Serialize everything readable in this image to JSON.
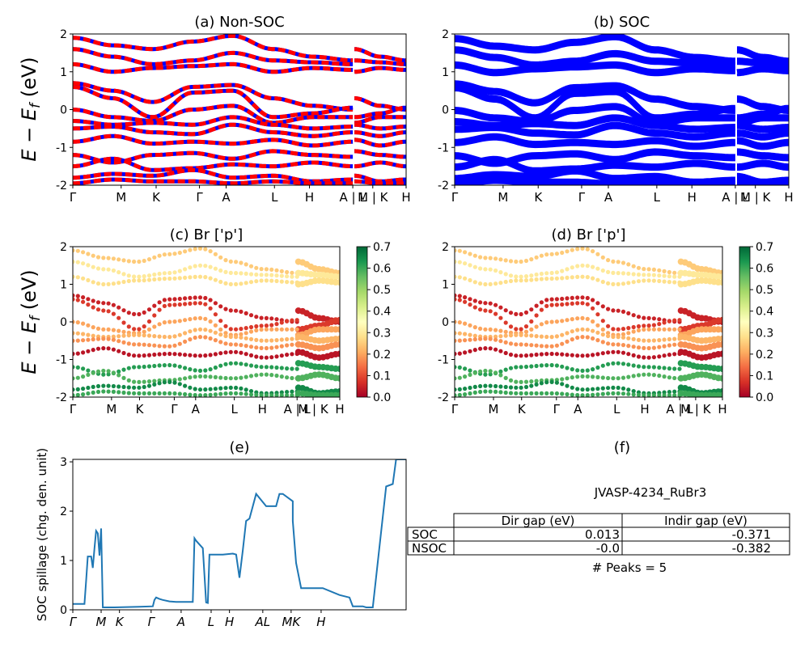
{
  "figure": {
    "row_ylabel": "E − E",
    "row_ylabel_sub": "f",
    "row_ylabel_unit": " (eV)"
  },
  "chart_data": [
    {
      "id": "a",
      "type": "line",
      "title": "(a) Non-SOC",
      "ylim": [
        -2,
        2
      ],
      "yticks": [
        "-2",
        "-1",
        "0",
        "1",
        "2"
      ],
      "kpath_labels": [
        "Γ",
        "M",
        "K",
        "Γ",
        "A",
        "L",
        "H",
        "A | L",
        "M | K",
        "H"
      ],
      "colors": [
        "#ff0000",
        "#0000ff"
      ],
      "segments": [
        {
          "x": [
            0.0,
            0.84
          ]
        },
        {
          "x": [
            0.845,
            1.0
          ]
        }
      ],
      "series": [
        {
          "values": [
            1.9,
            1.7,
            1.6,
            1.8,
            1.95,
            1.6,
            1.4,
            1.3
          ]
        },
        {
          "values": [
            1.6,
            1.4,
            1.2,
            1.3,
            1.5,
            1.3,
            1.25,
            1.2
          ]
        },
        {
          "values": [
            1.2,
            1.0,
            1.1,
            1.15,
            1.2,
            1.0,
            1.1,
            1.05
          ]
        },
        {
          "values": [
            0.7,
            0.5,
            0.2,
            0.6,
            0.65,
            0.3,
            0.1,
            0.0
          ]
        },
        {
          "values": [
            0.6,
            0.3,
            -0.2,
            0.45,
            0.5,
            -0.2,
            -0.1,
            0.05
          ]
        },
        {
          "values": [
            0.0,
            -0.2,
            -0.3,
            0.0,
            0.1,
            -0.35,
            -0.2,
            -0.2
          ]
        },
        {
          "values": [
            -0.3,
            -0.4,
            -0.35,
            -0.4,
            -0.2,
            -0.4,
            -0.5,
            -0.45
          ]
        },
        {
          "values": [
            -0.5,
            -0.45,
            -0.6,
            -0.65,
            -0.4,
            -0.6,
            -0.7,
            -0.6
          ]
        },
        {
          "values": [
            -0.85,
            -0.7,
            -0.9,
            -0.85,
            -0.9,
            -0.8,
            -0.95,
            -0.85
          ]
        },
        {
          "values": [
            -1.2,
            -1.4,
            -1.2,
            -1.15,
            -1.3,
            -1.1,
            -1.2,
            -1.25
          ]
        },
        {
          "values": [
            -1.5,
            -1.3,
            -1.6,
            -1.55,
            -1.45,
            -1.5,
            -1.4,
            -1.5
          ]
        },
        {
          "values": [
            -1.8,
            -1.7,
            -1.75,
            -1.6,
            -1.8,
            -1.75,
            -1.9,
            -1.85
          ]
        },
        {
          "values": [
            -1.95,
            -1.85,
            -1.9,
            -1.9,
            -1.95,
            -1.9,
            -1.95,
            -1.95
          ]
        }
      ]
    },
    {
      "id": "b",
      "type": "line",
      "title": "(b) SOC",
      "ylim": [
        -2,
        2
      ],
      "yticks": [
        "-2",
        "-1",
        "0",
        "1",
        "2"
      ],
      "kpath_labels": [
        "Γ",
        "M",
        "K",
        "Γ",
        "A",
        "L",
        "H",
        "A | L",
        "M | K",
        "H"
      ],
      "colors": [
        "#0000ff"
      ],
      "segments": [
        {
          "x": [
            0.0,
            0.84
          ]
        },
        {
          "x": [
            0.845,
            1.0
          ]
        }
      ],
      "series": [
        {
          "values": [
            1.9,
            1.7,
            1.6,
            1.8,
            1.95,
            1.6,
            1.4,
            1.3
          ]
        },
        {
          "values": [
            1.6,
            1.4,
            1.2,
            1.3,
            1.5,
            1.3,
            1.25,
            1.2
          ]
        },
        {
          "values": [
            1.2,
            1.0,
            1.1,
            1.15,
            1.2,
            1.0,
            1.1,
            1.05
          ]
        },
        {
          "values": [
            0.7,
            0.5,
            0.2,
            0.6,
            0.65,
            0.3,
            0.1,
            0.0
          ]
        },
        {
          "values": [
            0.6,
            0.3,
            -0.2,
            0.45,
            0.5,
            -0.2,
            -0.1,
            0.05
          ]
        },
        {
          "values": [
            0.0,
            -0.2,
            -0.3,
            0.0,
            0.1,
            -0.35,
            -0.2,
            -0.2
          ]
        },
        {
          "values": [
            -0.3,
            -0.4,
            -0.35,
            -0.4,
            -0.2,
            -0.4,
            -0.5,
            -0.45
          ]
        },
        {
          "values": [
            -0.5,
            -0.45,
            -0.6,
            -0.65,
            -0.4,
            -0.6,
            -0.7,
            -0.6
          ]
        },
        {
          "values": [
            -0.85,
            -0.7,
            -0.9,
            -0.85,
            -0.9,
            -0.8,
            -0.95,
            -0.85
          ]
        },
        {
          "values": [
            -1.2,
            -1.4,
            -1.2,
            -1.15,
            -1.3,
            -1.1,
            -1.2,
            -1.25
          ]
        },
        {
          "values": [
            -1.5,
            -1.3,
            -1.6,
            -1.55,
            -1.45,
            -1.5,
            -1.4,
            -1.5
          ]
        },
        {
          "values": [
            -1.8,
            -1.7,
            -1.75,
            -1.6,
            -1.8,
            -1.75,
            -1.9,
            -1.85
          ]
        },
        {
          "values": [
            -1.95,
            -1.85,
            -1.9,
            -1.9,
            -1.95,
            -1.9,
            -1.95,
            -1.95
          ]
        }
      ]
    },
    {
      "id": "c",
      "type": "scatter",
      "title": "(c)  Br ['p']",
      "ylim": [
        -2,
        2
      ],
      "yticks": [
        "-2",
        "-1",
        "0",
        "1",
        "2"
      ],
      "kpath_labels": [
        "Γ",
        "M",
        "K",
        "Γ",
        "A",
        "L",
        "H",
        "A | L",
        "M | K",
        "H"
      ],
      "colorbar": {
        "min": 0.0,
        "max": 0.7,
        "ticks": [
          "0.0",
          "0.1",
          "0.2",
          "0.3",
          "0.4",
          "0.5",
          "0.6",
          "0.7"
        ],
        "colormap": "RdYlGn"
      },
      "segments": [
        {
          "x": [
            0.0,
            0.84
          ]
        },
        {
          "x": [
            0.845,
            1.0
          ]
        }
      ],
      "series": [
        {
          "values": [
            1.9,
            1.7,
            1.6,
            1.8,
            1.95,
            1.6,
            1.4,
            1.3
          ],
          "weight": 0.25
        },
        {
          "values": [
            1.6,
            1.4,
            1.2,
            1.3,
            1.5,
            1.3,
            1.25,
            1.2
          ],
          "weight": 0.3
        },
        {
          "values": [
            1.2,
            1.0,
            1.1,
            1.15,
            1.2,
            1.0,
            1.1,
            1.05
          ],
          "weight": 0.28
        },
        {
          "values": [
            0.7,
            0.5,
            0.2,
            0.6,
            0.65,
            0.3,
            0.1,
            0.0
          ],
          "weight": 0.05
        },
        {
          "values": [
            0.6,
            0.3,
            -0.2,
            0.45,
            0.5,
            -0.2,
            -0.1,
            0.05
          ],
          "weight": 0.08
        },
        {
          "values": [
            0.0,
            -0.2,
            -0.3,
            0.0,
            0.1,
            -0.35,
            -0.2,
            -0.2
          ],
          "weight": 0.2
        },
        {
          "values": [
            -0.3,
            -0.4,
            -0.35,
            -0.4,
            -0.2,
            -0.4,
            -0.5,
            -0.45
          ],
          "weight": 0.22
        },
        {
          "values": [
            -0.5,
            -0.45,
            -0.6,
            -0.65,
            -0.4,
            -0.6,
            -0.7,
            -0.6
          ],
          "weight": 0.18
        },
        {
          "values": [
            -0.85,
            -0.7,
            -0.9,
            -0.85,
            -0.9,
            -0.8,
            -0.95,
            -0.85
          ],
          "weight": 0.03
        },
        {
          "values": [
            -1.2,
            -1.4,
            -1.2,
            -1.15,
            -1.3,
            -1.1,
            -1.2,
            -1.25
          ],
          "weight": 0.62
        },
        {
          "values": [
            -1.5,
            -1.3,
            -1.6,
            -1.55,
            -1.45,
            -1.5,
            -1.4,
            -1.5
          ],
          "weight": 0.58
        },
        {
          "values": [
            -1.8,
            -1.7,
            -1.75,
            -1.6,
            -1.8,
            -1.75,
            -1.9,
            -1.85
          ],
          "weight": 0.65
        },
        {
          "values": [
            -1.95,
            -1.85,
            -1.9,
            -1.9,
            -1.95,
            -1.9,
            -1.95,
            -1.95
          ],
          "weight": 0.6
        }
      ]
    },
    {
      "id": "d",
      "type": "scatter",
      "title": "(d) Br ['p']",
      "ylim": [
        -2,
        2
      ],
      "yticks": [
        "-2",
        "-1",
        "0",
        "1",
        "2"
      ],
      "kpath_labels": [
        "Γ",
        "M",
        "K",
        "Γ",
        "A",
        "L",
        "H",
        "A | L",
        "M | K",
        "H"
      ],
      "colorbar": {
        "min": 0.0,
        "max": 0.7,
        "ticks": [
          "0.0",
          "0.1",
          "0.2",
          "0.3",
          "0.4",
          "0.5",
          "0.6",
          "0.7"
        ],
        "colormap": "RdYlGn"
      },
      "segments": [
        {
          "x": [
            0.0,
            0.84
          ]
        },
        {
          "x": [
            0.845,
            1.0
          ]
        }
      ],
      "series": [
        {
          "values": [
            1.9,
            1.7,
            1.6,
            1.8,
            1.95,
            1.6,
            1.4,
            1.3
          ],
          "weight": 0.25
        },
        {
          "values": [
            1.6,
            1.4,
            1.2,
            1.3,
            1.5,
            1.3,
            1.25,
            1.2
          ],
          "weight": 0.3
        },
        {
          "values": [
            1.2,
            1.0,
            1.1,
            1.15,
            1.2,
            1.0,
            1.1,
            1.05
          ],
          "weight": 0.28
        },
        {
          "values": [
            0.7,
            0.5,
            0.2,
            0.6,
            0.65,
            0.3,
            0.1,
            0.0
          ],
          "weight": 0.05
        },
        {
          "values": [
            0.6,
            0.3,
            -0.2,
            0.45,
            0.5,
            -0.2,
            -0.1,
            0.05
          ],
          "weight": 0.08
        },
        {
          "values": [
            0.0,
            -0.2,
            -0.3,
            0.0,
            0.1,
            -0.35,
            -0.2,
            -0.2
          ],
          "weight": 0.2
        },
        {
          "values": [
            -0.3,
            -0.4,
            -0.35,
            -0.4,
            -0.2,
            -0.4,
            -0.5,
            -0.45
          ],
          "weight": 0.22
        },
        {
          "values": [
            -0.5,
            -0.45,
            -0.6,
            -0.65,
            -0.4,
            -0.6,
            -0.7,
            -0.6
          ],
          "weight": 0.18
        },
        {
          "values": [
            -0.85,
            -0.7,
            -0.9,
            -0.85,
            -0.9,
            -0.8,
            -0.95,
            -0.85
          ],
          "weight": 0.03
        },
        {
          "values": [
            -1.2,
            -1.4,
            -1.2,
            -1.15,
            -1.3,
            -1.1,
            -1.2,
            -1.25
          ],
          "weight": 0.62
        },
        {
          "values": [
            -1.5,
            -1.3,
            -1.6,
            -1.55,
            -1.45,
            -1.5,
            -1.4,
            -1.5
          ],
          "weight": 0.58
        },
        {
          "values": [
            -1.8,
            -1.7,
            -1.75,
            -1.6,
            -1.8,
            -1.75,
            -1.9,
            -1.85
          ],
          "weight": 0.65
        },
        {
          "values": [
            -1.95,
            -1.85,
            -1.9,
            -1.9,
            -1.95,
            -1.9,
            -1.95,
            -1.95
          ],
          "weight": 0.6
        }
      ]
    },
    {
      "id": "e",
      "type": "line",
      "title": "(e)",
      "ylabel": "SOC spillage (chg. den. unit)",
      "ylim": [
        0,
        3.05
      ],
      "yticks": [
        "0",
        "1",
        "2",
        "3"
      ],
      "kpath_labels": [
        "Γ",
        "M",
        "K",
        "Γ",
        "A",
        "L",
        "H",
        "AL",
        "MK",
        "H"
      ],
      "x": [
        0.0,
        0.035,
        0.04,
        0.045,
        0.055,
        0.06,
        0.065,
        0.07,
        0.075,
        0.08,
        0.085,
        0.09,
        0.095,
        0.1,
        0.105,
        0.115,
        0.125,
        0.2,
        0.24,
        0.245,
        0.25,
        0.26,
        0.27,
        0.29,
        0.31,
        0.35,
        0.36,
        0.365,
        0.37,
        0.39,
        0.4,
        0.405,
        0.41,
        0.45,
        0.48,
        0.49,
        0.5,
        0.51,
        0.52,
        0.53,
        0.55,
        0.58,
        0.59,
        0.6,
        0.61,
        0.62,
        0.625,
        0.63,
        0.66,
        0.66,
        0.67,
        0.685,
        0.69,
        0.7,
        0.74,
        0.75,
        0.8,
        0.83,
        0.84,
        0.85,
        0.87,
        0.88,
        0.89,
        0.9,
        0.94,
        0.96,
        0.97,
        0.98,
        1.0
      ],
      "series": [
        {
          "name": "",
          "values": [
            0.12,
            0.12,
            0.6,
            1.08,
            1.08,
            0.85,
            1.25,
            1.6,
            1.55,
            1.1,
            1.65,
            0.05,
            0.05,
            0.05,
            0.05,
            0.05,
            0.05,
            0.06,
            0.07,
            0.2,
            0.25,
            0.22,
            0.2,
            0.17,
            0.16,
            0.16,
            0.16,
            1.45,
            1.4,
            1.25,
            0.15,
            0.14,
            1.12,
            1.12,
            1.14,
            1.12,
            0.65,
            1.2,
            1.8,
            1.85,
            2.35,
            2.1,
            2.1,
            2.1,
            2.1,
            2.35,
            2.35,
            2.35,
            2.2,
            1.8,
            0.95,
            0.44,
            0.44,
            0.44,
            0.44,
            0.44,
            0.3,
            0.25,
            0.07,
            0.07,
            0.07,
            0.05,
            0.05,
            0.05,
            2.5,
            2.55,
            3.05,
            3.05,
            3.05
          ]
        }
      ]
    },
    {
      "id": "f",
      "type": "table",
      "title": "(f)",
      "subtitle": "JVASP-4234_RuBr3",
      "columns": [
        "",
        "Dir gap (eV)",
        "Indir gap (eV)"
      ],
      "rows": [
        [
          "SOC",
          "0.013",
          "-0.371"
        ],
        [
          "NSOC",
          "-0.0",
          "-0.382"
        ]
      ],
      "footnote": "# Peaks = 5"
    }
  ]
}
